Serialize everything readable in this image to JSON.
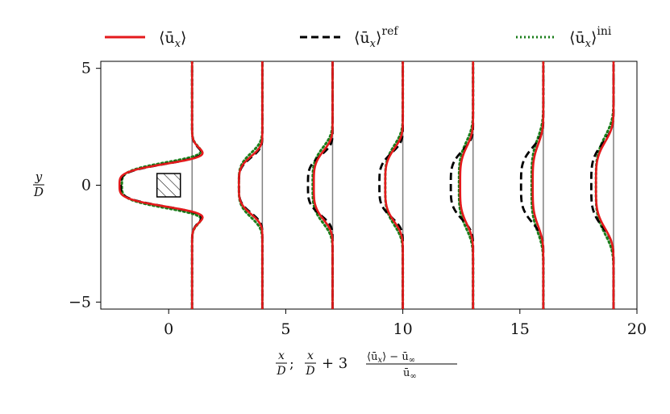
{
  "chart_data": {
    "type": "line",
    "x_axis": {
      "label_parts": [
        "x",
        "D",
        ";",
        "x",
        "D",
        "+ 3",
        "⟨ū",
        "x",
        "⟩ − ū",
        "∞",
        "ū",
        "∞"
      ],
      "ticks": [
        0,
        5,
        10,
        15,
        20
      ],
      "tick_labels": [
        "0",
        "5",
        "10",
        "15",
        "20"
      ],
      "range": [
        -2.9,
        20.0
      ]
    },
    "y_axis": {
      "label_num": "y",
      "label_den": "D",
      "ticks": [
        -5,
        0,
        5
      ],
      "tick_labels": [
        "−5",
        "0",
        "5"
      ],
      "range": [
        -5.3,
        5.3
      ]
    },
    "legend": {
      "placement": "top",
      "entries": [
        {
          "key": "mean",
          "base": "⟨ū",
          "sub": "x",
          "close": "⟩",
          "sup": "",
          "color": "#e41a1c",
          "dash": "solid"
        },
        {
          "key": "ref",
          "base": "⟨ū",
          "sub": "x",
          "close": "⟩",
          "sup": "ref",
          "color": "#000000",
          "dash": "dashed"
        },
        {
          "key": "ini",
          "base": "⟨ū",
          "sub": "x",
          "close": "⟩",
          "sup": "ini",
          "color": "#1a7d1a",
          "dash": "dotted"
        }
      ]
    },
    "stations": [
      1,
      4,
      7,
      10,
      13,
      16,
      19
    ],
    "series": [
      {
        "key": "mean",
        "min_offset": [
          -3.1,
          -1.0,
          -0.8,
          -0.75,
          -0.55,
          -0.45,
          -0.75
        ],
        "half_width": [
          0.95,
          1.3,
          1.55,
          1.65,
          1.75,
          1.85,
          1.95
        ],
        "edge_bump": [
          0.55,
          0.0,
          0.0,
          0.0,
          0.0,
          0.0,
          0.0
        ]
      },
      {
        "key": "ref",
        "min_offset": [
          -3.05,
          -1.0,
          -1.05,
          -1.0,
          -0.95,
          -0.95,
          -0.95
        ],
        "half_width": [
          0.95,
          1.25,
          1.35,
          1.45,
          1.55,
          1.7,
          1.9
        ],
        "edge_bump": [
          0.5,
          0.0,
          0.0,
          0.0,
          0.0,
          0.0,
          0.0
        ]
      },
      {
        "key": "ini",
        "min_offset": [
          -3.0,
          -1.0,
          -0.85,
          -0.75,
          -0.6,
          -0.5,
          -0.75
        ],
        "half_width": [
          1.05,
          1.45,
          1.7,
          1.8,
          1.95,
          2.1,
          2.2
        ],
        "edge_bump": [
          0.6,
          0.0,
          0.0,
          0.0,
          0.0,
          0.0,
          0.0
        ]
      }
    ],
    "annotations": [
      {
        "type": "hatched-square",
        "x": [
          -0.5,
          0.5
        ],
        "y": [
          -0.5,
          0.5
        ]
      }
    ],
    "grid": false
  }
}
